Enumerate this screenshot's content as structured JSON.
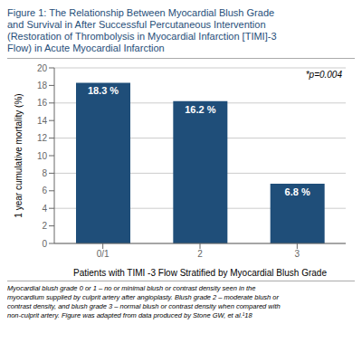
{
  "chart_data": {
    "type": "bar",
    "title": [
      "Figure 1: The Relationship Between Myocardial Blush Grade",
      "and Survival in After Successful Percutaneous Intervention",
      "(Restoration of Thrombolysis in Myocardial Infarction [TIMI]-3",
      "Flow) in Acute Myocardial Infarction"
    ],
    "categories": [
      "0/1",
      "2",
      "3"
    ],
    "values": [
      18.3,
      16.2,
      6.8
    ],
    "value_labels": [
      "18.3 %",
      "16.2 %",
      "6.8 %"
    ],
    "data_labels": true,
    "color": "#1f4e79",
    "ylabel": "1 year cumulative mortality (%)",
    "xlabel": "Patients with TIMI -3 Flow Stratified by Myocardial Blush Grade",
    "ylim": [
      0,
      20
    ],
    "yticks": [
      0,
      2,
      4,
      6,
      8,
      10,
      12,
      14,
      16,
      18,
      20
    ],
    "grid": true,
    "annotation": "*p=0.004",
    "footnote": [
      "Myocardial blush grade 0 or 1 – no or minimal blush or contrast density seen in the",
      "myocardium supplied by culprit artery after angioplasty. Blush grade 2 – moderate blush or",
      "contrast density, and blush grade 3 – normal blush or contrast density when compared with",
      "non-culprit artery. Figure was adapted from data produced by Stone GW, et al.¹18"
    ]
  }
}
